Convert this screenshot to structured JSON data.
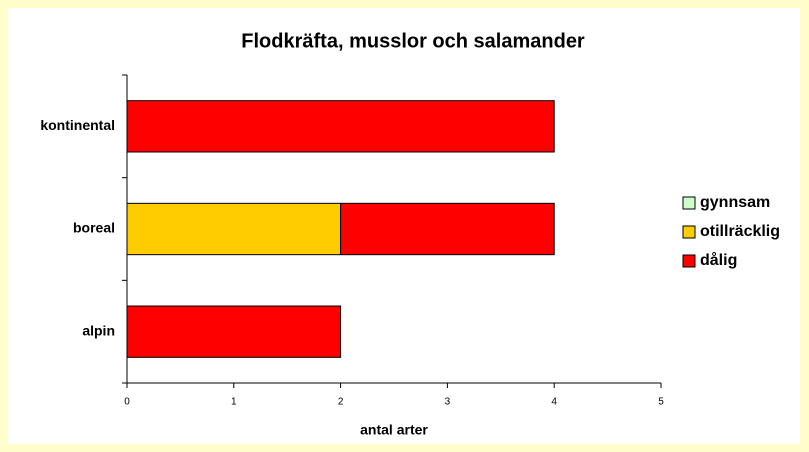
{
  "chart_data": {
    "type": "stacked-barh",
    "title": "Flodkräfta, musslor och salamander",
    "xlabel": "antal arter",
    "categories": [
      "kontinental",
      "boreal",
      "alpin"
    ],
    "series": [
      {
        "name": "gynnsam",
        "color": "#ccffcc",
        "values": [
          0,
          0,
          0
        ]
      },
      {
        "name": "otillräcklig",
        "color": "#ffcc00",
        "values": [
          0,
          2,
          0
        ]
      },
      {
        "name": "dålig",
        "color": "#ff0000",
        "values": [
          4,
          2,
          2
        ]
      }
    ],
    "xlim": [
      0,
      5
    ],
    "xticks": [
      0,
      1,
      2,
      3,
      4,
      5
    ],
    "grid": false,
    "legend": "right"
  }
}
